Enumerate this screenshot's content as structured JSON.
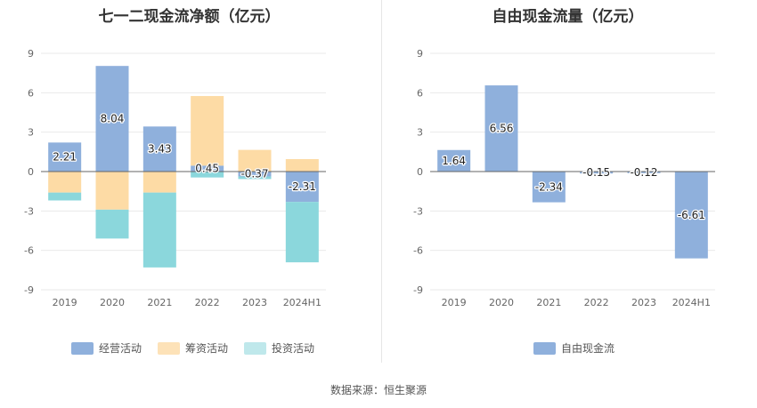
{
  "source": "数据来源：恒生聚源",
  "colors": {
    "operating": "#8fb0dc",
    "financing": "#fddba5",
    "investing": "#8bd7dc",
    "free": "#8fb0dc",
    "axis": "#666666",
    "grid": "#e9e9e9"
  },
  "chart_data": [
    {
      "type": "bar",
      "stacked": true,
      "title": "七一二现金流净额（亿元）",
      "categories": [
        "2019",
        "2020",
        "2021",
        "2022",
        "2023",
        "2024H1"
      ],
      "ylim": [
        -9,
        9
      ],
      "yticks": [
        9,
        6,
        3,
        0,
        -3,
        -6,
        -9
      ],
      "series": [
        {
          "name": "经营活动",
          "key": "operating",
          "values": [
            2.21,
            8.04,
            3.43,
            0.45,
            -0.37,
            -2.31
          ],
          "labels": [
            "2.21",
            "8.04",
            "3.43",
            "0.45",
            "-0.37",
            "-2.31"
          ]
        },
        {
          "name": "筹资活动",
          "key": "financing",
          "values": [
            -1.6,
            -2.9,
            -1.6,
            5.3,
            1.65,
            0.95
          ]
        },
        {
          "name": "投资活动",
          "key": "investing",
          "values": [
            -0.6,
            -2.2,
            -5.7,
            -0.45,
            -0.2,
            -4.6
          ]
        }
      ],
      "legend_position": "bottom"
    },
    {
      "type": "bar",
      "title": "自由现金流量（亿元）",
      "categories": [
        "2019",
        "2020",
        "2021",
        "2022",
        "2023",
        "2024H1"
      ],
      "ylim": [
        -9,
        9
      ],
      "yticks": [
        9,
        6,
        3,
        0,
        -3,
        -6,
        -9
      ],
      "series": [
        {
          "name": "自由现金流",
          "key": "free",
          "values": [
            1.64,
            6.56,
            -2.34,
            -0.15,
            -0.12,
            -6.61
          ],
          "labels": [
            "1.64",
            "6.56",
            "-2.34",
            "-0.15",
            "-0.12",
            "-6.61"
          ]
        }
      ],
      "legend_position": "bottom"
    }
  ]
}
